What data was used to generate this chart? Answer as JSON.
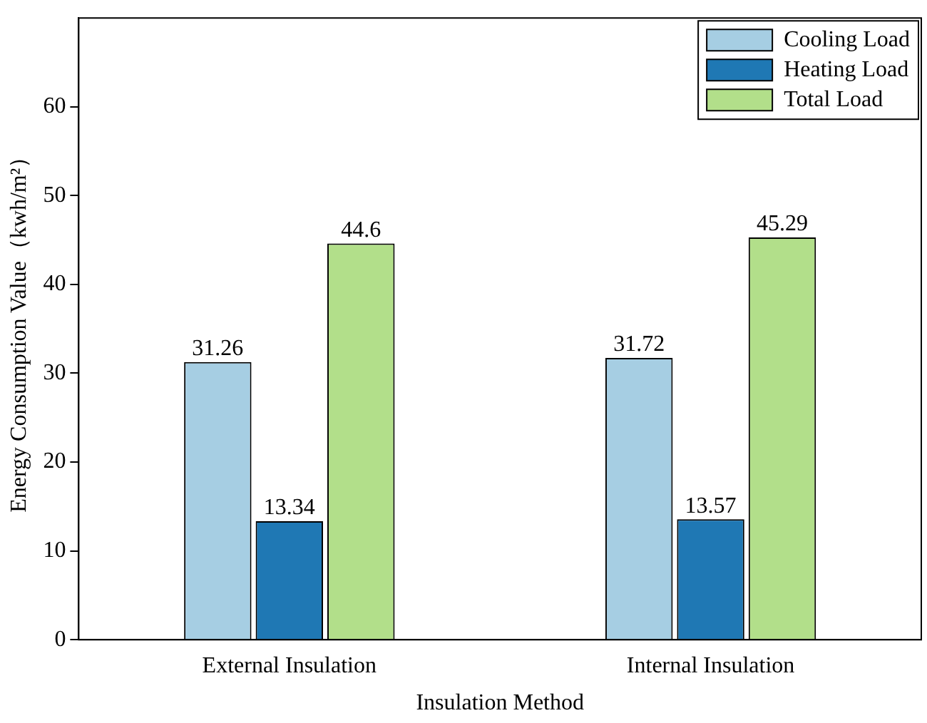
{
  "chart_data": {
    "type": "bar",
    "xlabel": "Insulation Method",
    "ylabel": "Energy Consumption Value（kwh/m²）",
    "categories": [
      "External Insulation",
      "Internal Insulation"
    ],
    "series": [
      {
        "name": "Cooling Load",
        "color": "#a6cee3",
        "values": [
          31.26,
          31.72
        ]
      },
      {
        "name": "Heating Load",
        "color": "#1f78b4",
        "values": [
          13.34,
          13.57
        ]
      },
      {
        "name": "Total Load",
        "color": "#b2df8a",
        "values": [
          44.6,
          45.29
        ]
      }
    ],
    "ylim": [
      0,
      70
    ],
    "yticks": [
      0,
      10,
      20,
      30,
      40,
      50,
      60
    ],
    "grid": false,
    "legend": "top right",
    "data_labels": true
  }
}
